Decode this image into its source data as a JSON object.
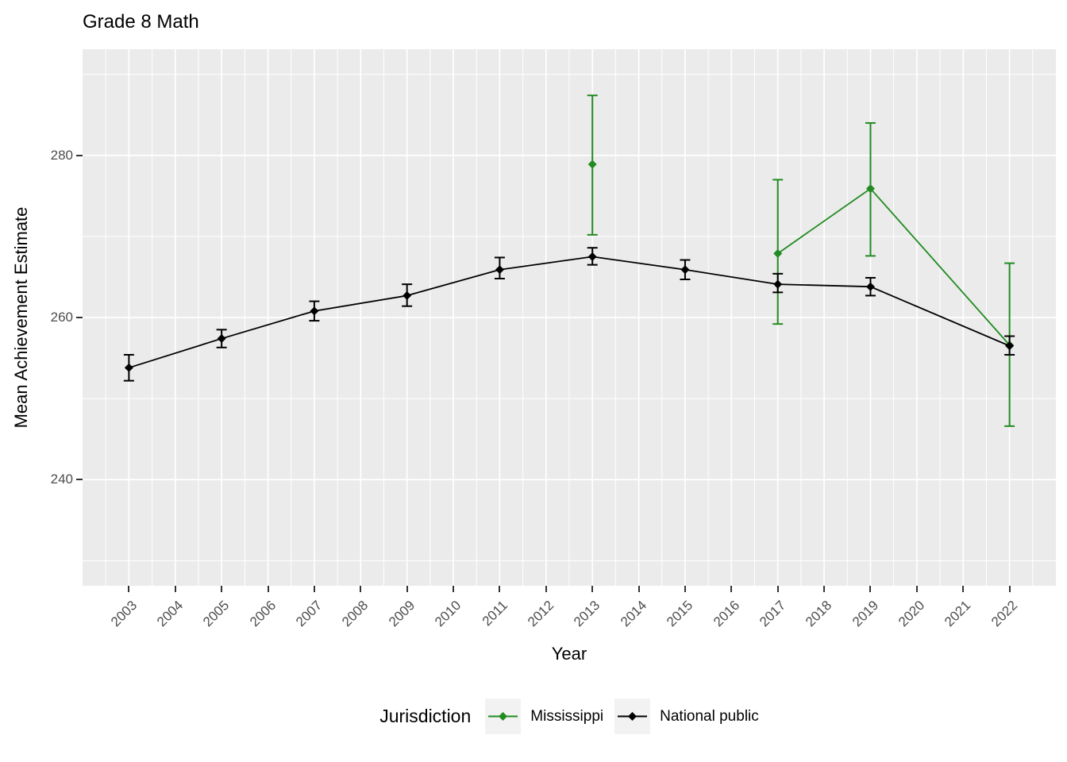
{
  "title": "Grade 8 Math",
  "axes": {
    "x_title": "Year",
    "y_title": "Mean Achievement Estimate",
    "x_tick_labels": [
      "2003",
      "2004",
      "2005",
      "2006",
      "2007",
      "2008",
      "2009",
      "2010",
      "2011",
      "2012",
      "2013",
      "2014",
      "2015",
      "2016",
      "2017",
      "2018",
      "2019",
      "2020",
      "2021",
      "2022"
    ],
    "y_tick_labels": [
      "240",
      "260",
      "280"
    ]
  },
  "legend": {
    "title": "Jurisdiction",
    "entries": [
      {
        "label": "Mississippi",
        "color": "#228B22"
      },
      {
        "label": "National public",
        "color": "#000000"
      }
    ]
  },
  "colors": {
    "panel_bg": "#EBEBEB",
    "gridline": "#FFFFFF",
    "tick_mark": "#333333",
    "tick_label": "#4D4D4D",
    "title_text": "#000000",
    "legend_key_bg": "#F2F2F2",
    "mississippi_green": "#228B22",
    "national_black": "#000000"
  },
  "chart_data": {
    "type": "line",
    "title": "Grade 8 Math",
    "xlabel": "Year",
    "ylabel": "Mean Achievement Estimate",
    "xlim": [
      2002.0,
      2023.0
    ],
    "ylim": [
      226.9,
      293.1
    ],
    "x_major_ticks": [
      2003,
      2004,
      2005,
      2006,
      2007,
      2008,
      2009,
      2010,
      2011,
      2012,
      2013,
      2014,
      2015,
      2016,
      2017,
      2018,
      2019,
      2020,
      2021,
      2022
    ],
    "x_minor_gridlines": [
      2002.5,
      2003.5,
      2004.5,
      2005.5,
      2006.5,
      2007.5,
      2008.5,
      2009.5,
      2010.5,
      2011.5,
      2012.5,
      2013.5,
      2014.5,
      2015.5,
      2016.5,
      2017.5,
      2018.5,
      2019.5,
      2020.5,
      2021.5,
      2022.5
    ],
    "y_major_gridlines": [
      240,
      260,
      280
    ],
    "y_minor_gridlines": [
      230,
      250,
      270,
      290
    ],
    "grid": "on",
    "error_bars": true,
    "legend_position": "bottom",
    "legend_title": "Jurisdiction",
    "series": [
      {
        "name": "Mississippi",
        "color": "#228B22",
        "points": [
          {
            "x": 2013,
            "y": 278.9,
            "lo": 270.2,
            "hi": 287.4
          },
          {
            "x": 2017,
            "y": 267.9,
            "lo": 259.2,
            "hi": 277.0
          },
          {
            "x": 2019,
            "y": 275.9,
            "lo": 267.6,
            "hi": 284.0
          },
          {
            "x": 2022,
            "y": 256.6,
            "lo": 246.6,
            "hi": 266.7
          }
        ],
        "line_segments": [
          [
            2017,
            2019,
            2022
          ]
        ]
      },
      {
        "name": "National public",
        "color": "#000000",
        "points": [
          {
            "x": 2003,
            "y": 253.8,
            "lo": 252.2,
            "hi": 255.4
          },
          {
            "x": 2005,
            "y": 257.4,
            "lo": 256.3,
            "hi": 258.5
          },
          {
            "x": 2007,
            "y": 260.8,
            "lo": 259.6,
            "hi": 262.0
          },
          {
            "x": 2009,
            "y": 262.7,
            "lo": 261.4,
            "hi": 264.1
          },
          {
            "x": 2011,
            "y": 265.9,
            "lo": 264.8,
            "hi": 267.4
          },
          {
            "x": 2013,
            "y": 267.5,
            "lo": 266.5,
            "hi": 268.6
          },
          {
            "x": 2015,
            "y": 265.9,
            "lo": 264.7,
            "hi": 267.1
          },
          {
            "x": 2017,
            "y": 264.1,
            "lo": 263.1,
            "hi": 265.4
          },
          {
            "x": 2019,
            "y": 263.8,
            "lo": 262.7,
            "hi": 264.9
          },
          {
            "x": 2022,
            "y": 256.5,
            "lo": 255.4,
            "hi": 257.7
          }
        ],
        "line_segments": [
          [
            2003,
            2005,
            2007,
            2009,
            2011,
            2013,
            2015,
            2017,
            2019,
            2022
          ]
        ]
      }
    ]
  }
}
